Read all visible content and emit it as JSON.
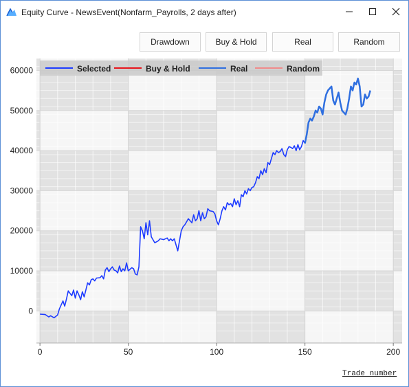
{
  "window": {
    "title": "Equity Curve - NewsEvent(Nonfarm_Payrolls, 2 days after)",
    "icon": "chart-app-icon",
    "controls": [
      "minimize-icon",
      "maximize-icon",
      "close-icon"
    ]
  },
  "toolbar": {
    "drawdown_label": "Drawdown",
    "buyhold_label": "Buy & Hold",
    "real_label": "Real",
    "random_label": "Random"
  },
  "chart_data": {
    "type": "line",
    "title": "",
    "xlabel": "Trade number",
    "ylabel": "",
    "xlim": [
      -2,
      205
    ],
    "ylim": [
      -8000,
      63000
    ],
    "x_ticks": [
      0,
      50,
      100,
      150,
      200
    ],
    "y_ticks": [
      0,
      10000,
      20000,
      30000,
      40000,
      50000,
      60000
    ],
    "grid": true,
    "legend_position": "top-left",
    "legend": [
      {
        "name": "Selected",
        "color": "#1e3cff"
      },
      {
        "name": "Buy & Hold",
        "color": "#e8141b"
      },
      {
        "name": "Real",
        "color": "#2f6fe0"
      },
      {
        "name": "Random",
        "color": "#f08b8b"
      }
    ],
    "series": [
      {
        "name": "Selected",
        "color": "#1e3cff",
        "x": [
          0,
          3,
          5,
          6,
          8,
          10,
          11,
          13,
          14,
          15,
          16,
          18,
          19,
          20,
          21,
          22,
          23,
          24,
          25,
          27,
          28,
          29,
          30,
          31,
          32,
          34,
          35,
          36,
          37,
          38,
          39,
          40,
          41,
          42,
          43,
          44,
          45,
          46,
          47,
          48,
          49,
          50,
          52,
          53,
          54,
          55,
          56,
          57,
          58,
          59,
          60,
          61,
          62,
          63,
          65,
          67,
          68,
          70,
          72,
          73,
          74,
          75,
          76,
          78,
          80,
          81,
          82,
          84,
          86,
          87,
          88,
          89,
          90,
          91,
          92,
          93,
          94,
          95,
          96,
          98,
          99,
          100,
          101,
          102,
          103,
          104,
          105,
          106,
          107,
          108,
          109,
          110,
          111,
          112,
          113,
          114,
          115,
          116,
          117,
          118,
          119,
          120,
          121,
          122,
          123,
          124,
          125,
          126,
          127,
          128,
          129,
          130,
          131,
          132,
          133,
          134,
          135,
          136,
          137,
          138,
          139,
          140,
          141,
          142,
          143,
          144,
          145,
          146,
          147,
          148,
          149,
          150
        ],
        "values": [
          -800,
          -900,
          -1500,
          -1200,
          -1700,
          -1000,
          500,
          2500,
          1200,
          3000,
          5000,
          3800,
          5200,
          3200,
          5000,
          4000,
          2800,
          4800,
          3500,
          7000,
          6500,
          7800,
          8000,
          7500,
          8200,
          8300,
          8800,
          8000,
          10200,
          10800,
          9800,
          10500,
          11000,
          10200,
          10000,
          9500,
          11200,
          9800,
          10500,
          10000,
          12000,
          10000,
          10800,
          10500,
          9200,
          9000,
          11000,
          21000,
          20000,
          18000,
          22000,
          19000,
          22500,
          18500,
          17000,
          17500,
          18000,
          17800,
          18200,
          17500,
          18000,
          17500,
          18000,
          15000,
          20000,
          21000,
          21500,
          23000,
          22000,
          24000,
          22500,
          23000,
          25000,
          22500,
          24500,
          23000,
          23500,
          25500,
          25000,
          24800,
          24200,
          22500,
          21500,
          23000,
          25000,
          26000,
          25200,
          27000,
          26500,
          26800,
          26000,
          28000,
          26500,
          27500,
          26000,
          29000,
          28500,
          30000,
          29200,
          30500,
          30000,
          30800,
          31000,
          32000,
          33500,
          33000,
          35000,
          34000,
          35500,
          34500,
          37000,
          36500,
          38000,
          39500,
          39000,
          40000,
          39500,
          39800,
          40500,
          39000,
          38500,
          40200,
          41000,
          40800,
          40500,
          41200,
          40000,
          41500,
          40200,
          41000,
          42500,
          41800
        ]
      },
      {
        "name": "Real",
        "color": "#2f6fe0",
        "x": [
          150,
          151,
          152,
          153,
          154,
          155,
          156,
          157,
          158,
          159,
          160,
          161,
          162,
          163,
          164,
          165,
          166,
          167,
          168,
          169,
          170,
          171,
          172,
          173,
          174,
          175,
          176,
          177,
          178,
          179,
          180,
          181,
          182,
          183,
          184,
          185,
          186,
          187
        ],
        "values": [
          41800,
          44000,
          47000,
          48000,
          47500,
          48500,
          50000,
          49500,
          51000,
          50500,
          49000,
          52000,
          54000,
          55000,
          55500,
          56000,
          52500,
          51500,
          53000,
          54500,
          52000,
          50000,
          49500,
          49000,
          50500,
          53000,
          56000,
          55000,
          57000,
          56500,
          58000,
          56000,
          51000,
          51500,
          54000,
          53000,
          53500,
          55000
        ]
      }
    ]
  }
}
